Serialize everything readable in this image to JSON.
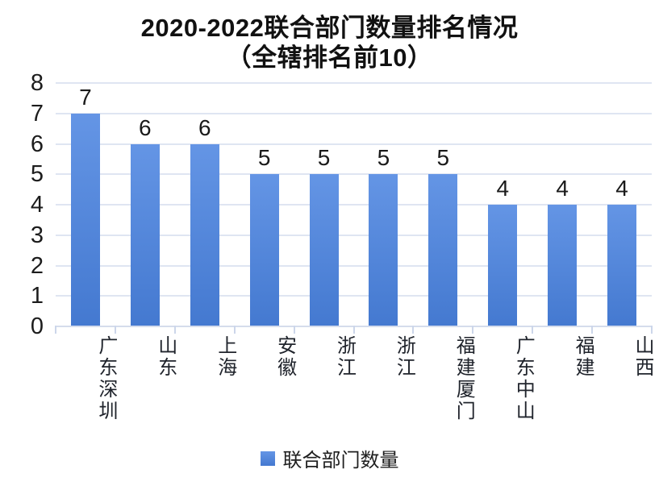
{
  "chart_data": {
    "type": "bar",
    "title": "2020-2022联合部门数量排名情况",
    "subtitle": "（全辖排名前10）",
    "categories": [
      "广东深圳",
      "山东",
      "上海",
      "安徽",
      "浙江",
      "浙江",
      "福建厦门",
      "广东中山",
      "福建",
      "山西"
    ],
    "values": [
      7,
      6,
      6,
      5,
      5,
      5,
      5,
      4,
      4,
      4
    ],
    "series_name": "联合部门数量",
    "xlabel": "",
    "ylabel": "",
    "ylim": [
      0,
      8
    ],
    "yticks": [
      0,
      1,
      2,
      3,
      4,
      5,
      6,
      7,
      8
    ],
    "grid": "horizontal",
    "legend_position": "bottom",
    "data_labels": true
  },
  "colors": {
    "bar_top": "#6495e5",
    "bar_bottom": "#4479d0",
    "legend_swatch_top": "#6495e5",
    "legend_swatch_bottom": "#4479d0",
    "gridline": "#dfe5f2",
    "axis_line": "#d5dcec",
    "tick": "#ccd6ea",
    "title_text": "#111111",
    "label_text": "#1a1a1a",
    "background": "#ffffff"
  }
}
